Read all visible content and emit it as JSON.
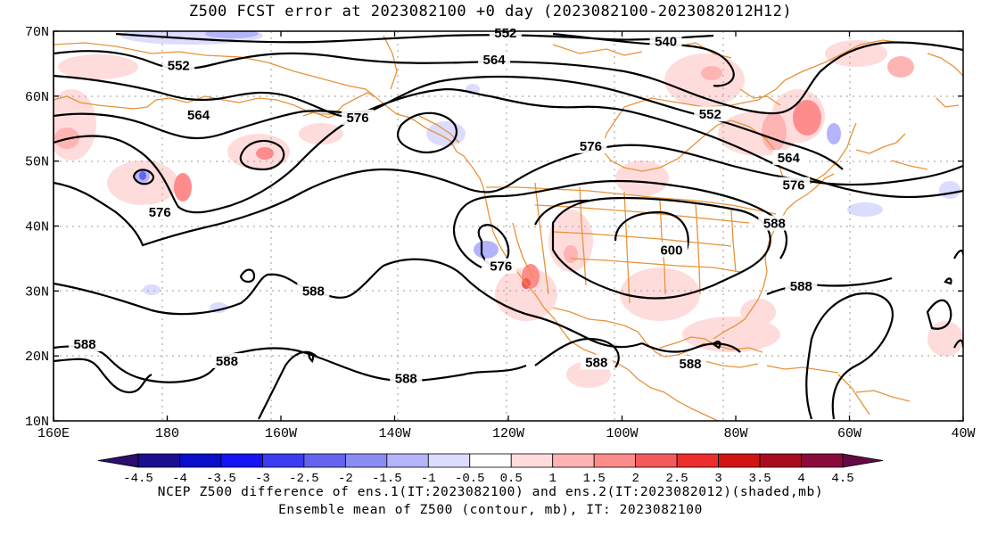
{
  "title": "Z500 FCST error at 2023082100 +0 day (2023082100-2023082012H12)",
  "map": {
    "lat_labels": [
      "70N",
      "60N",
      "50N",
      "40N",
      "30N",
      "20N",
      "10N"
    ],
    "lon_labels": [
      "160E",
      "180",
      "160W",
      "140W",
      "120W",
      "100W",
      "80W",
      "60W",
      "40W"
    ],
    "land_outline_color": "#e8923a",
    "contour_color": "#000000",
    "contour_labels": [
      {
        "text": "552",
        "lon": -120.5,
        "lat": 69.7
      },
      {
        "text": "540",
        "lon": -92.3,
        "lat": 68.4
      },
      {
        "text": "552",
        "lon": -178,
        "lat": 64.7
      },
      {
        "text": "564",
        "lon": -122.5,
        "lat": 65.6
      },
      {
        "text": "552",
        "lon": -84.5,
        "lat": 57.2
      },
      {
        "text": "564",
        "lon": -174.5,
        "lat": 57.1
      },
      {
        "text": "576",
        "lon": -146.5,
        "lat": 56.7
      },
      {
        "text": "576",
        "lon": -105.5,
        "lat": 52.3
      },
      {
        "text": "564",
        "lon": -70.7,
        "lat": 50.5
      },
      {
        "text": "576",
        "lon": -69.8,
        "lat": 46.3
      },
      {
        "text": "576",
        "lon": -181.3,
        "lat": 42.1
      },
      {
        "text": "588",
        "lon": -73.2,
        "lat": 40.4
      },
      {
        "text": "600",
        "lon": -91.3,
        "lat": 36.3
      },
      {
        "text": "576",
        "lon": -121.3,
        "lat": 33.8
      },
      {
        "text": "588",
        "lon": -154.3,
        "lat": 30.0
      },
      {
        "text": "588",
        "lon": -68.5,
        "lat": 30.7
      },
      {
        "text": "588",
        "lon": -194.5,
        "lat": 21.8
      },
      {
        "text": "588",
        "lon": -169.5,
        "lat": 19.2
      },
      {
        "text": "588",
        "lon": -138.0,
        "lat": 16.5
      },
      {
        "text": "588",
        "lon": -104.5,
        "lat": 19.0
      },
      {
        "text": "588",
        "lon": -88.0,
        "lat": 18.8
      }
    ]
  },
  "colorbar": {
    "labels": [
      "-4.5",
      "-4",
      "-3.5",
      "-3",
      "-2.5",
      "-2",
      "-1.5",
      "-1",
      "-0.5",
      "0.5",
      "1",
      "1.5",
      "2",
      "2.5",
      "3",
      "3.5",
      "4",
      "4.5"
    ],
    "colors": [
      "#2c0e6c",
      "#1a0f8f",
      "#0a0dc9",
      "#1414f5",
      "#3c3cf0",
      "#6464f0",
      "#8c8cf5",
      "#b4b4fa",
      "#dcdcff",
      "#ffffff",
      "#ffdcdc",
      "#ffb4b4",
      "#ff8c8c",
      "#f55a5a",
      "#ee2d2d",
      "#d21414",
      "#aa0a1e",
      "#8a0a3c",
      "#640a46"
    ]
  },
  "caption_line1": "NCEP Z500 difference of ens.1(IT:2023082100) and ens.2(IT:2023082012)(shaded,mb)",
  "caption_line2": "Ensemble mean of Z500 (contour, mb), IT: 2023082100"
}
